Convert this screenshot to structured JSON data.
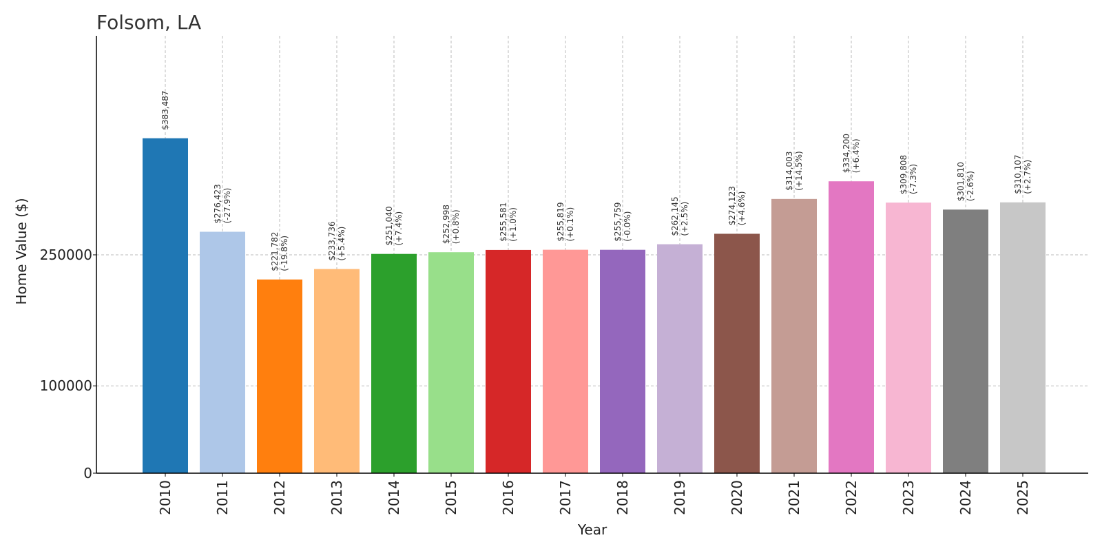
{
  "chart_data": {
    "type": "bar",
    "title": "Folsom, LA",
    "xlabel": "Year",
    "ylabel": "Home Value ($)",
    "categories": [
      "2010",
      "2011",
      "2012",
      "2013",
      "2014",
      "2015",
      "2016",
      "2017",
      "2018",
      "2019",
      "2020",
      "2021",
      "2022",
      "2023",
      "2024",
      "2025"
    ],
    "values": [
      383487,
      276423,
      221782,
      233736,
      251040,
      252998,
      255581,
      255819,
      255759,
      262145,
      274123,
      314003,
      334200,
      309808,
      301810,
      310107
    ],
    "value_labels": [
      "$383,487",
      "$276,423",
      "$221,782",
      "$233,736",
      "$251,040",
      "$252,998",
      "$255,581",
      "$255,819",
      "$255,759",
      "$262,145",
      "$274,123",
      "$314,003",
      "$334,200",
      "$309,808",
      "$301,810",
      "$310,107"
    ],
    "change_labels": [
      "",
      "(-27.9%)",
      "(-19.8%)",
      "(+5.4%)",
      "(+7.4%)",
      "(+0.8%)",
      "(+1.0%)",
      "(+0.1%)",
      "(-0.0%)",
      "(+2.5%)",
      "(+4.6%)",
      "(+14.5%)",
      "(+6.4%)",
      "(-7.3%)",
      "(-2.6%)",
      "(+2.7%)"
    ],
    "colors": [
      "#1f77b4",
      "#aec7e8",
      "#ff7f0e",
      "#ffbb78",
      "#2ca02c",
      "#98df8a",
      "#d62728",
      "#ff9896",
      "#9467bd",
      "#c5b0d5",
      "#8c564b",
      "#c49c94",
      "#e377c2",
      "#f7b6d2",
      "#7f7f7f",
      "#c7c7c7"
    ],
    "y_ticks": [
      0,
      100000,
      250000
    ],
    "y_tick_labels": [
      "0",
      "100000",
      "250000"
    ],
    "ylim": [
      0,
      500000
    ],
    "grid": true
  }
}
